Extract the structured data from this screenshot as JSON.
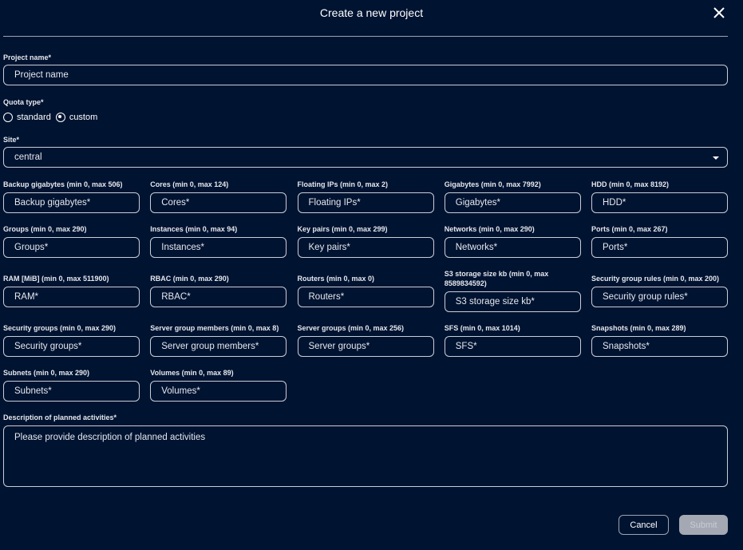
{
  "dialog": {
    "title": "Create a new project",
    "close_icon": "close-icon"
  },
  "project_name": {
    "label": "Project name*",
    "placeholder": "Project name"
  },
  "quota_type": {
    "label": "Quota type*",
    "options": [
      {
        "label": "standard",
        "selected": false
      },
      {
        "label": "custom",
        "selected": true
      }
    ]
  },
  "site": {
    "label": "Site*",
    "value": "central"
  },
  "quotas": [
    {
      "label": "Backup gigabytes (min 0, max 506)",
      "placeholder": "Backup gigabytes*"
    },
    {
      "label": "Cores (min 0, max 124)",
      "placeholder": "Cores*"
    },
    {
      "label": "Floating IPs (min 0, max 2)",
      "placeholder": "Floating IPs*"
    },
    {
      "label": "Gigabytes (min 0, max 7992)",
      "placeholder": "Gigabytes*"
    },
    {
      "label": "HDD (min 0, max 8192)",
      "placeholder": "HDD*"
    },
    {
      "label": "Groups (min 0, max 290)",
      "placeholder": "Groups*"
    },
    {
      "label": "Instances (min 0, max 94)",
      "placeholder": "Instances*"
    },
    {
      "label": "Key pairs (min 0, max 299)",
      "placeholder": "Key pairs*"
    },
    {
      "label": "Networks (min 0, max 290)",
      "placeholder": "Networks*"
    },
    {
      "label": "Ports (min 0, max 267)",
      "placeholder": "Ports*"
    },
    {
      "label": "RAM [MiB] (min 0, max 511900)",
      "placeholder": "RAM*"
    },
    {
      "label": "RBAC (min 0, max 290)",
      "placeholder": "RBAC*"
    },
    {
      "label": "Routers (min 0, max 0)",
      "placeholder": "Routers*"
    },
    {
      "label": "S3 storage size kb (min 0, max 8589834592)",
      "placeholder": "S3 storage size kb*"
    },
    {
      "label": "Security group rules (min 0, max 200)",
      "placeholder": "Security group rules*"
    },
    {
      "label": "Security groups (min 0, max 290)",
      "placeholder": "Security groups*"
    },
    {
      "label": "Server group members (min 0, max 8)",
      "placeholder": "Server group members*"
    },
    {
      "label": "Server groups (min 0, max 256)",
      "placeholder": "Server groups*"
    },
    {
      "label": "SFS (min 0, max 1014)",
      "placeholder": "SFS*"
    },
    {
      "label": "Snapshots (min 0, max 289)",
      "placeholder": "Snapshots*"
    },
    {
      "label": "Subnets (min 0, max 290)",
      "placeholder": "Subnets*"
    },
    {
      "label": "Volumes (min 0, max 89)",
      "placeholder": "Volumes*"
    }
  ],
  "description": {
    "label": "Description of planned activities*",
    "placeholder": "Please provide description of planned activities"
  },
  "footer": {
    "cancel_label": "Cancel",
    "submit_label": "Submit",
    "submit_disabled": true
  }
}
